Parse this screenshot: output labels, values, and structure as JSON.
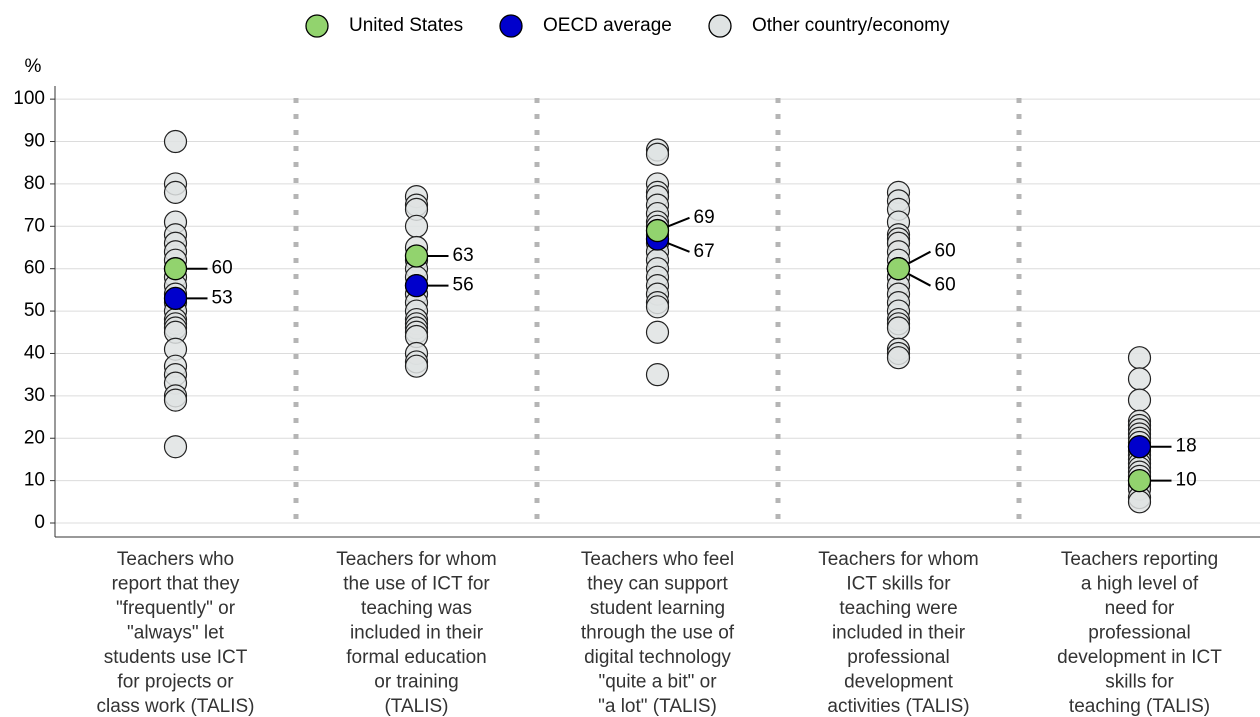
{
  "chart_data": {
    "type": "strip",
    "y_axis_label": "%",
    "categories": [
      [
        "Teachers who",
        "report that they",
        "\"frequently\" or",
        "\"always\" let",
        "students use ICT",
        "for projects or",
        "class work (TALIS)"
      ],
      [
        "Teachers for whom",
        "the use of ICT for",
        "teaching was",
        "included in their",
        "formal education",
        "or training",
        "(TALIS)"
      ],
      [
        "Teachers who feel",
        "they can support",
        "student learning",
        "through the use of",
        "digital technology",
        "\"quite a bit\" or",
        "\"a lot\" (TALIS)"
      ],
      [
        "Teachers for whom",
        "ICT skills for",
        "teaching were",
        "included in their",
        "professional",
        "development",
        "activities (TALIS)"
      ],
      [
        "Teachers reporting",
        "a high level of",
        "need for",
        "professional",
        "development in ICT",
        "skills for",
        "teaching (TALIS)"
      ]
    ],
    "series": [
      {
        "name": "Other country/economy",
        "color": "#dfe3e3",
        "values": [
          [
            90,
            80,
            78,
            71,
            68,
            66,
            64,
            62,
            60,
            58,
            56,
            54,
            52,
            50,
            48,
            47,
            46,
            45,
            41,
            37,
            35,
            33,
            30,
            29,
            18
          ],
          [
            77,
            75,
            74,
            70,
            65,
            62,
            60,
            58,
            56,
            54,
            52,
            50,
            48,
            47,
            46,
            45,
            44,
            40,
            38,
            37
          ],
          [
            88,
            87,
            80,
            78,
            77,
            75,
            73,
            71,
            70,
            68,
            66,
            64,
            62,
            60,
            58,
            56,
            54,
            52,
            51,
            45,
            35
          ],
          [
            78,
            76,
            74,
            71,
            68,
            67,
            66,
            64,
            62,
            60,
            58,
            56,
            54,
            52,
            50,
            48,
            47,
            46,
            41,
            40,
            39
          ],
          [
            39,
            34,
            29,
            24,
            23,
            22,
            21,
            20,
            19,
            18,
            17,
            16,
            15,
            14,
            13,
            12,
            11,
            9,
            8,
            6,
            5
          ]
        ]
      },
      {
        "name": "United States",
        "color": "#92d36e",
        "values": [
          60,
          63,
          69,
          60,
          10
        ]
      },
      {
        "name": "OECD average",
        "color": "#0000cc",
        "values": [
          53,
          56,
          67,
          60,
          18
        ]
      }
    ],
    "ylim": [
      -3.3,
      103.1
    ],
    "yticks": [
      0,
      10,
      20,
      30,
      40,
      50,
      60,
      70,
      80,
      90,
      100
    ],
    "grid": true
  }
}
